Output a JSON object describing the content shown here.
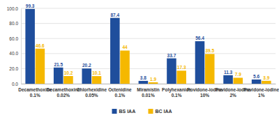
{
  "chart_data": {
    "type": "bar",
    "categories": [
      "Decamethoxine 0.1%",
      "Decamethoxine 0.02%",
      "Chlorhexidine 0.05%",
      "Octenidine 0.1%",
      "Miramistin 0.01%",
      "Polyhexanide 0.1%",
      "Povidone-iodine 10%",
      "Povidone-iodine 2%",
      "Povidone-iodine 1%"
    ],
    "series": [
      {
        "name": "BS IAA",
        "color": "#1f4e9c",
        "values": [
          99.3,
          21.5,
          20.2,
          87.4,
          3.8,
          33.7,
          56.4,
          11.3,
          5.6
        ]
      },
      {
        "name": "BC IAA",
        "color": "#f5b800",
        "values": [
          46.6,
          10.2,
          10.1,
          44.0,
          1.9,
          17.3,
          39.5,
          7.9,
          3.9
        ]
      }
    ],
    "ylim": [
      0,
      100
    ],
    "yticks": [
      {
        "value": 0,
        "label": "0.0"
      },
      {
        "value": 20,
        "label": "20.0"
      },
      {
        "value": 40,
        "label": "40.0"
      },
      {
        "value": 60,
        "label": "60.0"
      },
      {
        "value": 80,
        "label": "80.0"
      },
      {
        "value": 100,
        "label": "100.0"
      }
    ],
    "grid": true,
    "data_labels": true,
    "legend": "bottom"
  }
}
